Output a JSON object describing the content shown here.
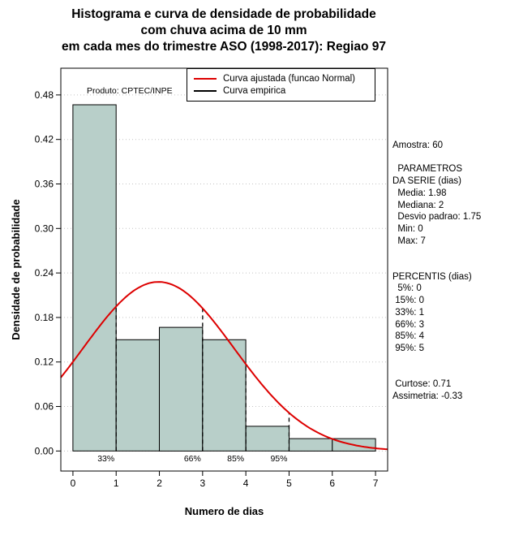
{
  "title": {
    "line1": "Histograma e curva de densidade de probabilidade",
    "line2": "com chuva acima de 10 mm",
    "line3": "em cada mes do trimestre ASO (1998-2017): Regiao 97"
  },
  "chart_data": {
    "type": "bar",
    "subtype": "histogram-with-fitted-density-curve",
    "title": "Histograma e curva de densidade de probabilidade com chuva acima de 10 mm em cada mes do trimestre ASO (1998-2017): Regiao 97",
    "xlabel": "Numero de dias",
    "ylabel": "Densidade de probabilidade",
    "x_ticks": [
      0,
      1,
      2,
      3,
      4,
      5,
      6,
      7
    ],
    "y_ticks": [
      0,
      0.06,
      0.12,
      0.18,
      0.24,
      0.3,
      0.36,
      0.42,
      0.48
    ],
    "xlim": [
      0,
      7
    ],
    "ylim": [
      0,
      0.48
    ],
    "grid": "dotted-horizontal",
    "bars": {
      "bin_width": 1,
      "bin_edges": [
        0,
        1,
        2,
        3,
        4,
        5,
        6,
        7
      ],
      "densities": [
        0.4667,
        0.15,
        0.1667,
        0.15,
        0.0333,
        0.0167,
        0.0167
      ],
      "fill": "#b8cfc9",
      "stroke": "#000000"
    },
    "fitted_curve": {
      "distribution": "normal",
      "mean": 1.98,
      "sd": 1.75,
      "color": "#dd0000"
    },
    "percentile_markers": [
      {
        "label": "33%",
        "x": 1
      },
      {
        "label": "66%",
        "x": 3
      },
      {
        "label": "85%",
        "x": 4
      },
      {
        "label": "95%",
        "x": 5
      }
    ],
    "legend": [
      {
        "label": "Curva ajustada (funcao Normal)",
        "color": "#dd0000"
      },
      {
        "label": "Curva empirica",
        "color": "#000000"
      }
    ],
    "watermark": "Produto: CPTEC/INPE"
  },
  "stats_panel": {
    "lines": [
      "Amostra: 60",
      "",
      "  PARAMETROS",
      "DA SERIE (dias)",
      "  Media: 1.98",
      "  Mediana: 2",
      "  Desvio padrao: 1.75",
      "  Min: 0",
      "  Max: 7",
      "",
      "",
      "PERCENTIS (dias)",
      "  5%: 0",
      " 15%: 0",
      " 33%: 1",
      " 66%: 3",
      " 85%: 4",
      " 95%: 5",
      "",
      "",
      " Curtose: 0.71",
      "Assimetria: -0.33"
    ]
  }
}
